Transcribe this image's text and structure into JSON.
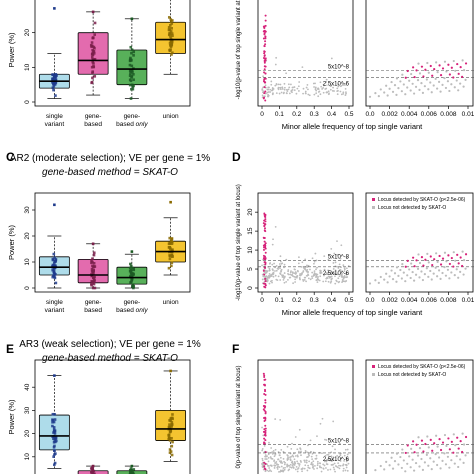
{
  "colors": {
    "single": "#aedcea",
    "gene": "#e36bae",
    "gene_only": "#58b05a",
    "union": "#f4c430",
    "grey_points": "#bcbcbc",
    "pink_points": "#d6237a",
    "dash": "#555555"
  },
  "rows": [
    {
      "panel_left": "",
      "panel_right": "",
      "title_line1": "",
      "title_line2": "",
      "ylabel": "Power (%)",
      "right_ylabel": "-log10(p-value of top single variant at",
      "show_xlabels": true,
      "show_xtitle": true,
      "show_legend": false
    },
    {
      "panel_left": "C",
      "panel_right": "D",
      "title_line1": "AR2 (moderate selection); VE per gene = 1%",
      "title_line2": "gene-based method = SKAT-O",
      "ylabel": "Power (%)",
      "right_ylabel": "-log10(p-value of top single variant at locus)",
      "show_xlabels": true,
      "show_xtitle": true,
      "show_legend": true
    },
    {
      "panel_left": "E",
      "panel_right": "F",
      "title_line1": "AR3 (weak selection); VE per gene = 1%",
      "title_line2": "gene-based method = SKAT-O",
      "ylabel": "Power (%)",
      "right_ylabel": "0(p-value of top single variant at locus)",
      "show_xlabels": false,
      "show_xtitle": false,
      "show_legend": true
    }
  ],
  "xtitle": "Minor allele frequency of top single variant",
  "legend": {
    "detected": "Locus detected by SKAT-O (p<2.5e-06)",
    "not_detected": "Locus not detected by SKAT-O"
  },
  "annotations": {
    "threshold1": "5x10^-8",
    "threshold2": "2.5x10^-6"
  },
  "box_categories": [
    "single\nvariant",
    "gene-\nbased",
    "gene-\nbased only",
    "union"
  ],
  "chart_data": [
    {
      "type": "box",
      "panel": "A",
      "categories": [
        "single variant",
        "gene-based",
        "gene-based only",
        "union"
      ],
      "ylim": [
        0,
        30
      ],
      "yticks": [
        0,
        10,
        20
      ],
      "boxes": [
        {
          "q1": 4,
          "median": 6,
          "q3": 8,
          "whisker_low": 1,
          "whisker_high": 14,
          "max": 27
        },
        {
          "q1": 8,
          "median": 12,
          "q3": 20,
          "whisker_low": 2,
          "whisker_high": 26,
          "max": 26
        },
        {
          "q1": 5,
          "median": 9.5,
          "q3": 15,
          "whisker_low": 1,
          "whisker_high": 24,
          "max": 24
        },
        {
          "q1": 14,
          "median": 18,
          "q3": 23,
          "whisker_low": 8,
          "whisker_high": 30,
          "max": 30
        }
      ]
    },
    {
      "type": "scatter",
      "panel": "B",
      "xlim": [
        0,
        0.5
      ],
      "xticks": [
        0,
        0.1,
        0.2,
        0.3,
        0.4,
        0.5
      ],
      "thresholds": [
        7.3,
        5.6
      ]
    },
    {
      "type": "scatter",
      "panel": "B-zoom",
      "xlim": [
        0,
        0.01
      ],
      "xticks": [
        0.0,
        0.002,
        0.004,
        0.006,
        0.008,
        0.01
      ],
      "xtick_labels": [
        "0.0",
        "0.002",
        "0.004",
        "0.006",
        "0.008",
        "0.01"
      ],
      "thresholds": [
        7.3,
        5.6
      ]
    },
    {
      "type": "box",
      "panel": "C",
      "categories": [
        "single variant",
        "gene-based",
        "gene-based only",
        "union"
      ],
      "ylim": [
        0,
        35
      ],
      "yticks": [
        0,
        10,
        20,
        30
      ],
      "boxes": [
        {
          "q1": 5,
          "median": 8,
          "q3": 12,
          "whisker_low": 0,
          "whisker_high": 20,
          "max": 32
        },
        {
          "q1": 2,
          "median": 5,
          "q3": 11,
          "whisker_low": 0,
          "whisker_high": 17,
          "max": 17
        },
        {
          "q1": 1.5,
          "median": 4,
          "q3": 8,
          "whisker_low": 0,
          "whisker_high": 13,
          "max": 14
        },
        {
          "q1": 10,
          "median": 14,
          "q3": 18,
          "whisker_low": 5,
          "whisker_high": 27,
          "max": 33
        }
      ]
    },
    {
      "type": "scatter",
      "panel": "D",
      "xlim": [
        0,
        0.5
      ],
      "xticks": [
        0,
        0.1,
        0.2,
        0.3,
        0.4,
        0.5
      ],
      "yticks": [
        0,
        5,
        10,
        15,
        20
      ],
      "ylim": [
        0,
        24
      ],
      "thresholds": [
        7.3,
        5.6
      ]
    },
    {
      "type": "scatter",
      "panel": "D-zoom",
      "xlim": [
        0,
        0.01
      ],
      "xticks": [
        0.0,
        0.002,
        0.004,
        0.006,
        0.008,
        0.01
      ],
      "xtick_labels": [
        "0.0",
        "0.002",
        "0.004",
        "0.006",
        "0.008",
        "0.01"
      ],
      "thresholds": [
        7.3,
        5.6
      ]
    },
    {
      "type": "box",
      "panel": "E",
      "categories": [
        "single variant",
        "gene-based",
        "gene-based only",
        "union"
      ],
      "ylim": [
        0,
        50
      ],
      "yticks": [
        0,
        10,
        20,
        30,
        40
      ],
      "boxes": [
        {
          "q1": 13,
          "median": 19,
          "q3": 28,
          "whisker_low": 5,
          "whisker_high": 45,
          "max": 45
        },
        {
          "q1": 0,
          "median": 2,
          "q3": 4,
          "whisker_low": 0,
          "whisker_high": 6,
          "max": 6
        },
        {
          "q1": 0,
          "median": 2,
          "q3": 4,
          "whisker_low": 0,
          "whisker_high": 6,
          "max": 6
        },
        {
          "q1": 17,
          "median": 22,
          "q3": 30,
          "whisker_low": 8,
          "whisker_high": 47,
          "max": 47
        }
      ]
    },
    {
      "type": "scatter",
      "panel": "F",
      "xlim": [
        0,
        0.5
      ],
      "thresholds": [
        7.3,
        5.6
      ]
    },
    {
      "type": "scatter",
      "panel": "F-zoom",
      "xlim": [
        0,
        0.01
      ],
      "thresholds": [
        7.3,
        5.6
      ]
    }
  ]
}
